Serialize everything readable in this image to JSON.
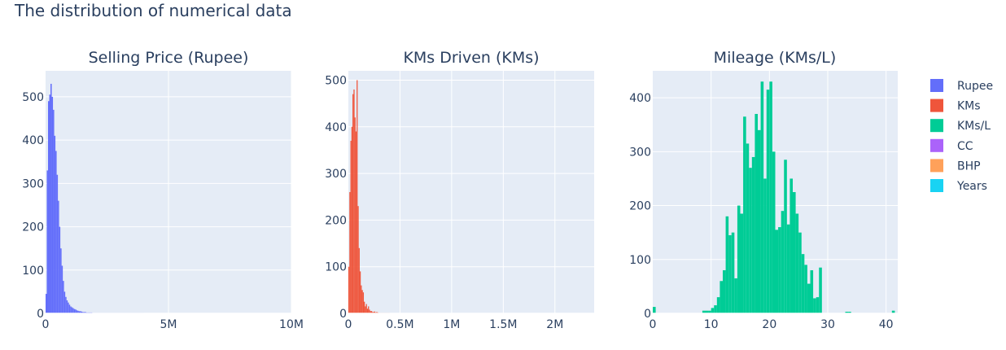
{
  "figure": {
    "title": "The distribution of numerical data"
  },
  "chart_data": [
    {
      "type": "bar",
      "title": "Selling Price (Rupee)",
      "series_name": "Rupee",
      "color": "#636efa",
      "xlim": [
        0,
        10000000
      ],
      "ylim": [
        0,
        560
      ],
      "x_ticks": [
        {
          "value": 0,
          "label": "0"
        },
        {
          "value": 5000000,
          "label": "5M"
        },
        {
          "value": 10000000,
          "label": "10M"
        }
      ],
      "y_ticks": [
        {
          "value": 0,
          "label": "0"
        },
        {
          "value": 100,
          "label": "100"
        },
        {
          "value": 200,
          "label": "200"
        },
        {
          "value": 300,
          "label": "300"
        },
        {
          "value": 400,
          "label": "400"
        },
        {
          "value": 500,
          "label": "500"
        }
      ],
      "bin_start": 0,
      "bin_width": 50000,
      "counts": [
        45,
        330,
        490,
        505,
        530,
        500,
        470,
        410,
        375,
        320,
        260,
        200,
        150,
        110,
        75,
        50,
        38,
        30,
        25,
        20,
        16,
        14,
        12,
        10,
        9,
        7,
        6,
        5,
        5,
        4,
        3,
        3,
        3,
        2,
        2,
        2,
        2,
        2,
        1,
        1,
        1,
        1,
        1,
        1,
        1,
        1,
        1,
        1,
        1,
        1,
        1,
        1,
        1,
        1,
        1,
        1,
        1,
        1,
        1,
        1,
        1,
        1,
        1,
        1,
        1,
        1,
        1,
        1,
        1,
        1,
        1,
        1,
        1,
        1,
        1,
        1,
        1,
        1,
        1,
        1
      ]
    },
    {
      "type": "bar",
      "title": "KMs Driven (KMs)",
      "series_name": "KMs",
      "color": "#ef553b",
      "xlim": [
        0,
        2380000
      ],
      "ylim": [
        0,
        520
      ],
      "x_ticks": [
        {
          "value": 0,
          "label": "0"
        },
        {
          "value": 500000,
          "label": "0.5M"
        },
        {
          "value": 1000000,
          "label": "1M"
        },
        {
          "value": 1500000,
          "label": "1.5M"
        },
        {
          "value": 2000000,
          "label": "2M"
        }
      ],
      "y_ticks": [
        {
          "value": 0,
          "label": "0"
        },
        {
          "value": 100,
          "label": "100"
        },
        {
          "value": 200,
          "label": "200"
        },
        {
          "value": 300,
          "label": "300"
        },
        {
          "value": 400,
          "label": "400"
        },
        {
          "value": 500,
          "label": "500"
        }
      ],
      "bin_start": 0,
      "bin_width": 10000,
      "counts": [
        100,
        260,
        370,
        400,
        470,
        480,
        420,
        390,
        500,
        230,
        140,
        90,
        60,
        50,
        45,
        25,
        15,
        20,
        10,
        15,
        8,
        5,
        5,
        3,
        3,
        4,
        2,
        3,
        2,
        1,
        1,
        1,
        1,
        1,
        1,
        1,
        1,
        1,
        1,
        1
      ]
    },
    {
      "type": "bar",
      "title": "Mileage (KMs/L)",
      "series_name": "KMs/L",
      "color": "#00cc96",
      "xlim": [
        0,
        42
      ],
      "ylim": [
        0,
        450
      ],
      "x_ticks": [
        {
          "value": 0,
          "label": "0"
        },
        {
          "value": 10,
          "label": "10"
        },
        {
          "value": 20,
          "label": "20"
        },
        {
          "value": 30,
          "label": "30"
        },
        {
          "value": 40,
          "label": "40"
        }
      ],
      "y_ticks": [
        {
          "value": 0,
          "label": "0"
        },
        {
          "value": 100,
          "label": "100"
        },
        {
          "value": 200,
          "label": "200"
        },
        {
          "value": 300,
          "label": "300"
        },
        {
          "value": 400,
          "label": "400"
        }
      ],
      "bin_start": 0,
      "bin_width": 0.5,
      "counts": [
        12,
        0,
        0,
        0,
        0,
        0,
        0,
        0,
        0,
        0,
        0,
        0,
        0,
        0,
        0,
        0,
        0,
        5,
        5,
        5,
        10,
        15,
        30,
        60,
        80,
        180,
        145,
        150,
        65,
        200,
        185,
        365,
        315,
        270,
        290,
        370,
        340,
        430,
        250,
        415,
        430,
        300,
        155,
        160,
        190,
        285,
        165,
        250,
        225,
        185,
        150,
        110,
        90,
        55,
        80,
        28,
        30,
        85,
        0,
        0,
        0,
        0,
        0,
        0,
        0,
        0,
        3,
        3,
        0,
        0,
        0,
        0,
        0,
        0,
        0,
        0,
        0,
        0,
        0,
        0,
        0,
        0,
        5,
        0
      ]
    }
  ],
  "legend": [
    {
      "label": "Rupee",
      "color": "#636efa"
    },
    {
      "label": "KMs",
      "color": "#ef553b"
    },
    {
      "label": "KMs/L",
      "color": "#00cc96"
    },
    {
      "label": "CC",
      "color": "#ab63fa"
    },
    {
      "label": "BHP",
      "color": "#ffa15a"
    },
    {
      "label": "Years",
      "color": "#19d3f3"
    }
  ]
}
